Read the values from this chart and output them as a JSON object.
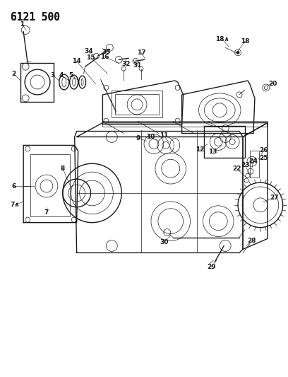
{
  "title": "6121 500",
  "bg_color": "#ffffff",
  "line_color": "#1a1a1a",
  "title_fontsize": 10.5,
  "label_fontsize": 6.5,
  "figsize": [
    4.08,
    5.33
  ],
  "dpi": 100
}
